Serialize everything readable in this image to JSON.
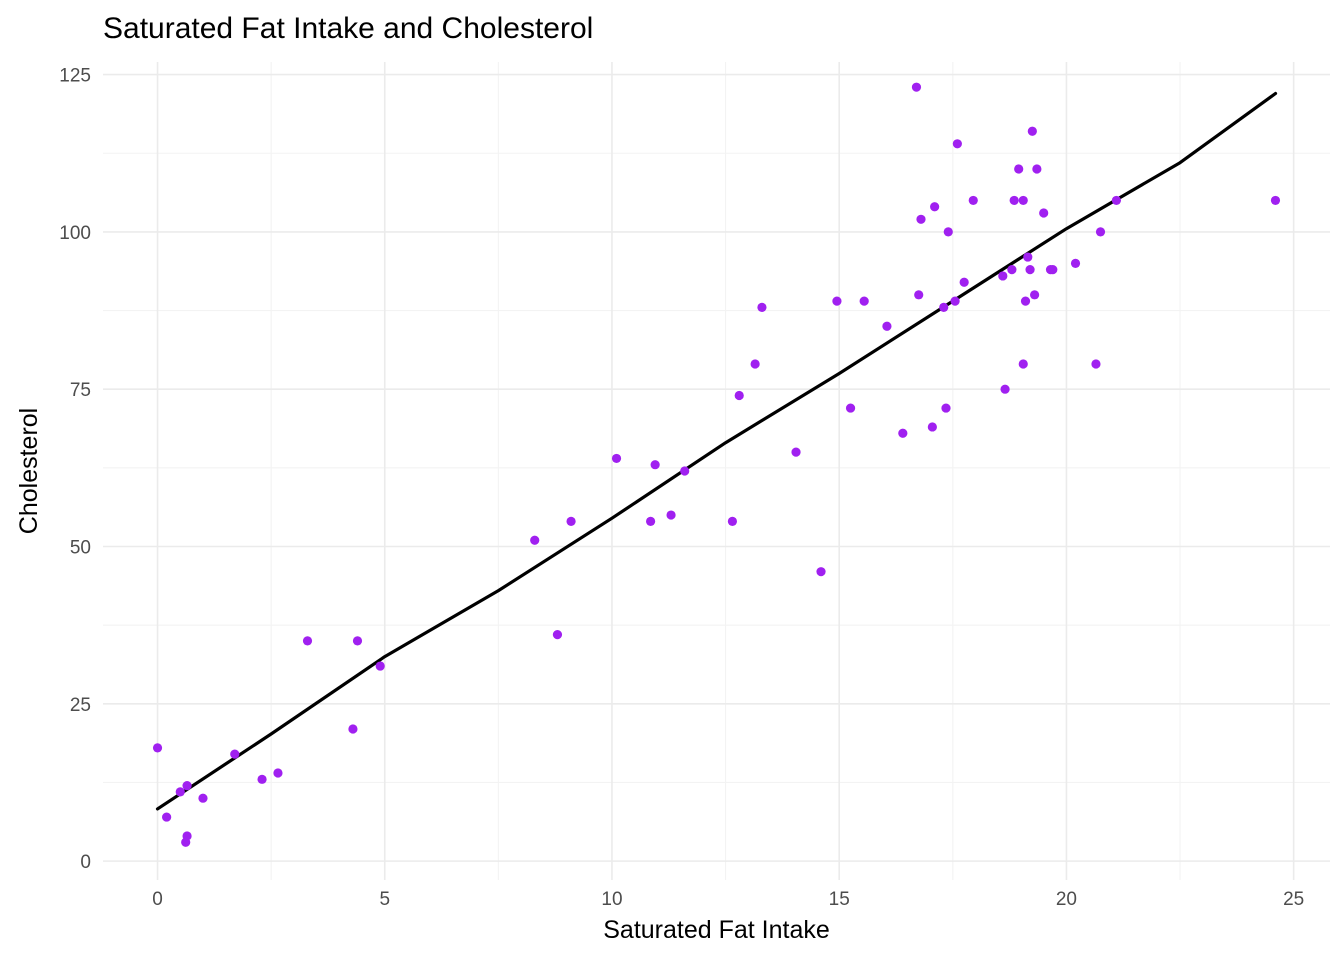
{
  "chart_data": {
    "type": "scatter",
    "title": "Saturated Fat Intake and Cholesterol",
    "xlabel": "Saturated Fat Intake",
    "ylabel": "Cholesterol",
    "xlim": [
      -1.2,
      25.8
    ],
    "ylim": [
      -3,
      127
    ],
    "x_ticks": [
      0,
      5,
      10,
      15,
      20,
      25
    ],
    "y_ticks": [
      0,
      25,
      50,
      75,
      100,
      125
    ],
    "grid": true,
    "point_color": "#A020F0",
    "line_color": "#000000",
    "points": [
      {
        "x": 0.0,
        "y": 18
      },
      {
        "x": 0.2,
        "y": 7
      },
      {
        "x": 0.5,
        "y": 11
      },
      {
        "x": 0.65,
        "y": 12
      },
      {
        "x": 0.65,
        "y": 4
      },
      {
        "x": 0.62,
        "y": 3
      },
      {
        "x": 1.0,
        "y": 10
      },
      {
        "x": 1.7,
        "y": 17
      },
      {
        "x": 2.3,
        "y": 13
      },
      {
        "x": 2.65,
        "y": 14
      },
      {
        "x": 3.3,
        "y": 35
      },
      {
        "x": 4.3,
        "y": 21
      },
      {
        "x": 4.4,
        "y": 35
      },
      {
        "x": 4.9,
        "y": 31
      },
      {
        "x": 8.3,
        "y": 51
      },
      {
        "x": 8.8,
        "y": 36
      },
      {
        "x": 9.1,
        "y": 54
      },
      {
        "x": 10.1,
        "y": 64
      },
      {
        "x": 10.85,
        "y": 54
      },
      {
        "x": 10.95,
        "y": 63
      },
      {
        "x": 11.3,
        "y": 55
      },
      {
        "x": 11.6,
        "y": 62
      },
      {
        "x": 12.65,
        "y": 54
      },
      {
        "x": 12.8,
        "y": 74
      },
      {
        "x": 13.15,
        "y": 79
      },
      {
        "x": 13.3,
        "y": 88
      },
      {
        "x": 14.05,
        "y": 65
      },
      {
        "x": 14.6,
        "y": 46
      },
      {
        "x": 14.95,
        "y": 89
      },
      {
        "x": 15.25,
        "y": 72
      },
      {
        "x": 15.55,
        "y": 89
      },
      {
        "x": 16.05,
        "y": 85
      },
      {
        "x": 16.4,
        "y": 68
      },
      {
        "x": 16.7,
        "y": 123
      },
      {
        "x": 16.75,
        "y": 90
      },
      {
        "x": 16.8,
        "y": 102
      },
      {
        "x": 17.05,
        "y": 69
      },
      {
        "x": 17.1,
        "y": 104
      },
      {
        "x": 17.3,
        "y": 88
      },
      {
        "x": 17.35,
        "y": 72
      },
      {
        "x": 17.4,
        "y": 100
      },
      {
        "x": 17.55,
        "y": 89
      },
      {
        "x": 17.6,
        "y": 114
      },
      {
        "x": 17.75,
        "y": 92
      },
      {
        "x": 17.95,
        "y": 105
      },
      {
        "x": 18.6,
        "y": 93
      },
      {
        "x": 18.65,
        "y": 75
      },
      {
        "x": 18.8,
        "y": 94
      },
      {
        "x": 18.85,
        "y": 105
      },
      {
        "x": 18.95,
        "y": 110
      },
      {
        "x": 19.05,
        "y": 105
      },
      {
        "x": 19.05,
        "y": 79
      },
      {
        "x": 19.1,
        "y": 89
      },
      {
        "x": 19.15,
        "y": 96
      },
      {
        "x": 19.2,
        "y": 94
      },
      {
        "x": 19.25,
        "y": 116
      },
      {
        "x": 19.3,
        "y": 90
      },
      {
        "x": 19.35,
        "y": 110
      },
      {
        "x": 19.5,
        "y": 103
      },
      {
        "x": 19.65,
        "y": 94
      },
      {
        "x": 19.7,
        "y": 94
      },
      {
        "x": 20.2,
        "y": 95
      },
      {
        "x": 20.65,
        "y": 79
      },
      {
        "x": 20.75,
        "y": 100
      },
      {
        "x": 21.1,
        "y": 105
      },
      {
        "x": 24.6,
        "y": 105
      }
    ],
    "trend_line": [
      {
        "x": 0.0,
        "y": 8.3
      },
      {
        "x": 2.5,
        "y": 20.2
      },
      {
        "x": 5.0,
        "y": 32.5
      },
      {
        "x": 7.5,
        "y": 43.0
      },
      {
        "x": 10.0,
        "y": 54.5
      },
      {
        "x": 12.5,
        "y": 66.5
      },
      {
        "x": 15.0,
        "y": 77.5
      },
      {
        "x": 17.5,
        "y": 89.0
      },
      {
        "x": 20.0,
        "y": 100.5
      },
      {
        "x": 22.5,
        "y": 111.0
      },
      {
        "x": 24.6,
        "y": 122.0
      }
    ]
  }
}
